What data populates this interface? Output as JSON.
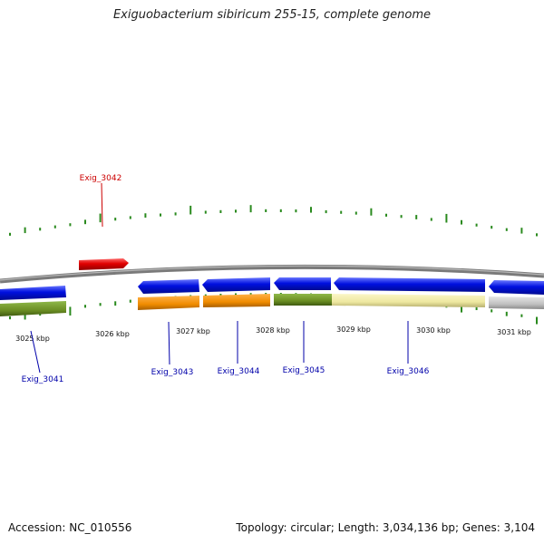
{
  "title": "Exiguobacterium sibiricum 255-15, complete genome",
  "accession": "Accession: NC_010556",
  "summary": "Topology: circular; Length: 3,034,136 bp; Genes: 3,104",
  "scale_labels": [
    "3025 kbp",
    "3026 kbp",
    "3027 kbp",
    "3028 kbp",
    "3029 kbp",
    "3030 kbp",
    "3031 kbp"
  ],
  "gene_labels": {
    "exig_3042": "Exig_3042",
    "exig_3041": "Exig_3041",
    "exig_3043": "Exig_3043",
    "exig_3044": "Exig_3044",
    "exig_3045": "Exig_3045",
    "exig_3046": "Exig_3046"
  },
  "colors": {
    "forward_cds": "#e00000",
    "reverse_cds": "#0010e0",
    "backbone": "#808080",
    "gc_ticks": "#2a8a1e",
    "cog_orange": "#f08c00",
    "cog_olive": "#6b8e23",
    "cog_khaki": "#eee8a0",
    "cog_gray": "#c0c0c0",
    "label_forward": "#cc0000",
    "label_reverse": "#0000aa"
  }
}
